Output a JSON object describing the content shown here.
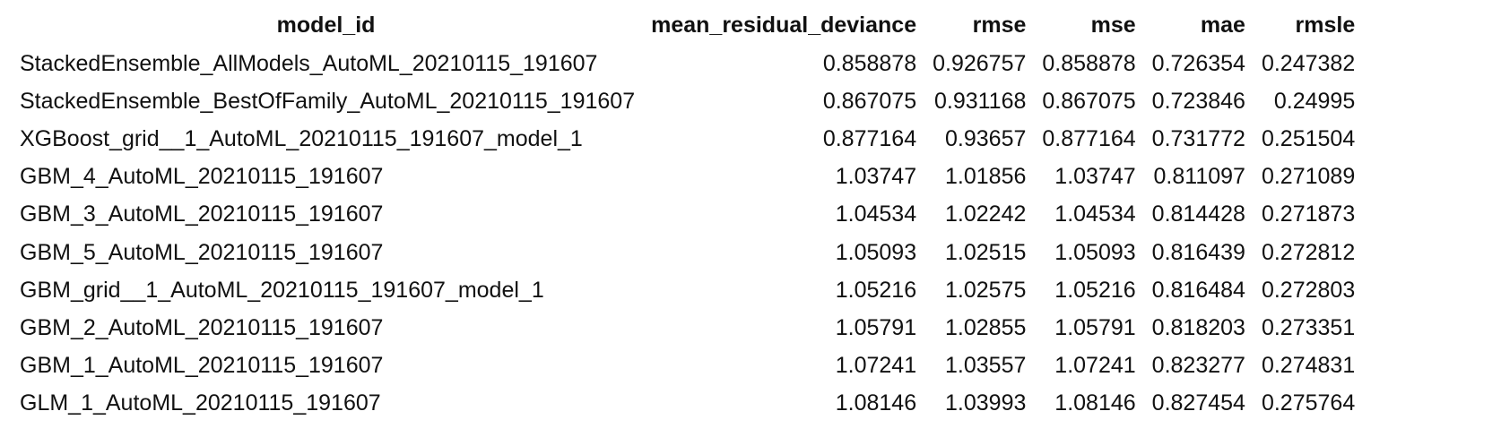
{
  "table": {
    "columns": [
      "model_id",
      "mean_residual_deviance",
      "rmse",
      "mse",
      "mae",
      "rmsle"
    ],
    "rows": [
      [
        "StackedEnsemble_AllModels_AutoML_20210115_191607",
        "0.858878",
        "0.926757",
        "0.858878",
        "0.726354",
        "0.247382"
      ],
      [
        "StackedEnsemble_BestOfFamily_AutoML_20210115_191607",
        "0.867075",
        "0.931168",
        "0.867075",
        "0.723846",
        "0.24995"
      ],
      [
        "XGBoost_grid__1_AutoML_20210115_191607_model_1",
        "0.877164",
        "0.93657",
        "0.877164",
        "0.731772",
        "0.251504"
      ],
      [
        "GBM_4_AutoML_20210115_191607",
        "1.03747",
        "1.01856",
        "1.03747",
        "0.811097",
        "0.271089"
      ],
      [
        "GBM_3_AutoML_20210115_191607",
        "1.04534",
        "1.02242",
        "1.04534",
        "0.814428",
        "0.271873"
      ],
      [
        "GBM_5_AutoML_20210115_191607",
        "1.05093",
        "1.02515",
        "1.05093",
        "0.816439",
        "0.272812"
      ],
      [
        "GBM_grid__1_AutoML_20210115_191607_model_1",
        "1.05216",
        "1.02575",
        "1.05216",
        "0.816484",
        "0.272803"
      ],
      [
        "GBM_2_AutoML_20210115_191607",
        "1.05791",
        "1.02855",
        "1.05791",
        "0.818203",
        "0.273351"
      ],
      [
        "GBM_1_AutoML_20210115_191607",
        "1.07241",
        "1.03557",
        "1.07241",
        "0.823277",
        "0.274831"
      ],
      [
        "GLM_1_AutoML_20210115_191607",
        "1.08146",
        "1.03993",
        "1.08146",
        "0.827454",
        "0.275764"
      ]
    ]
  }
}
